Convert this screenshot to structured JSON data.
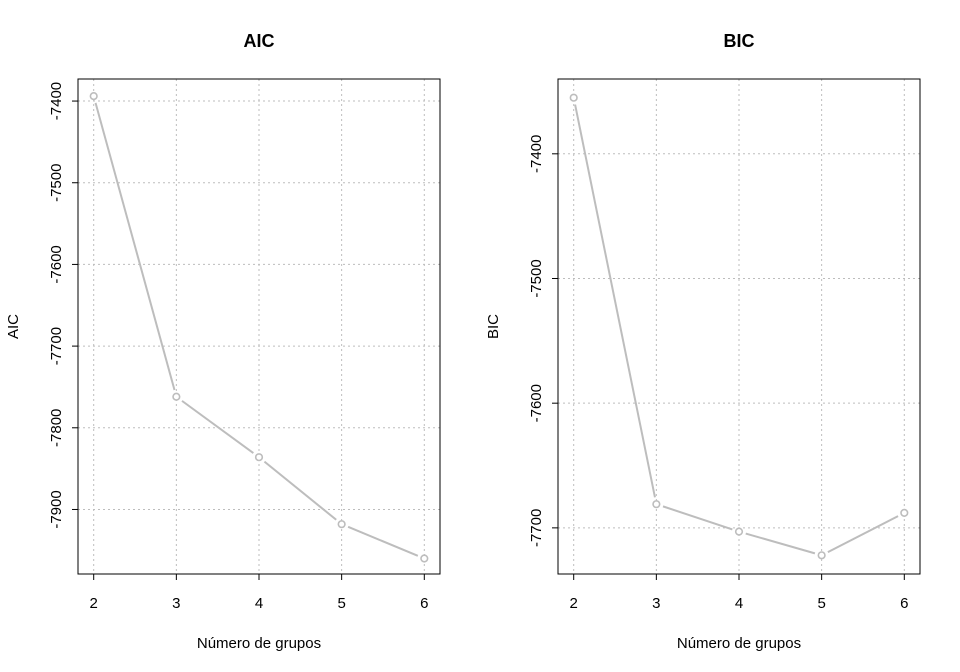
{
  "chart_data": [
    {
      "type": "line",
      "title": "AIC",
      "xlabel": "Número de grupos",
      "ylabel": "AIC",
      "x": [
        2,
        3,
        4,
        5,
        6
      ],
      "series": [
        {
          "values": [
            -7394,
            -7762,
            -7836,
            -7918,
            -7960
          ]
        }
      ],
      "xticks": [
        2,
        3,
        4,
        5,
        6
      ],
      "yticks": [
        -7400,
        -7500,
        -7600,
        -7700,
        -7800,
        -7900
      ],
      "xlim": [
        1.81,
        6.19
      ],
      "ylim": [
        -7979,
        -7373
      ],
      "grid": true,
      "line_color": "#bdbdbd"
    },
    {
      "type": "line",
      "title": "BIC",
      "xlabel": "Número de grupos",
      "ylabel": "BIC",
      "x": [
        2,
        3,
        4,
        5,
        6
      ],
      "series": [
        {
          "values": [
            -7355,
            -7681,
            -7703,
            -7722,
            -7688
          ]
        }
      ],
      "xticks": [
        2,
        3,
        4,
        5,
        6
      ],
      "yticks": [
        -7400,
        -7500,
        -7600,
        -7700
      ],
      "xlim": [
        1.81,
        6.19
      ],
      "ylim": [
        -7737,
        -7340
      ],
      "grid": true,
      "line_color": "#bdbdbd"
    }
  ]
}
